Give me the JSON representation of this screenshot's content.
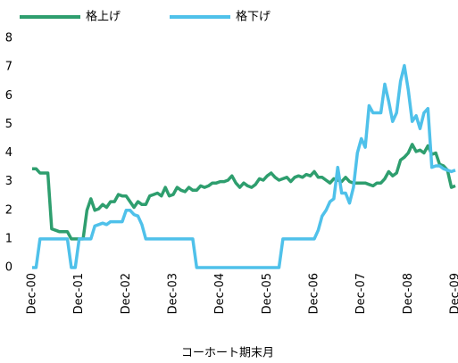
{
  "chart_data": {
    "type": "line",
    "xlabel": "コーホート期末月",
    "categories": [
      "Dec-00",
      null,
      null,
      null,
      null,
      null,
      null,
      null,
      null,
      null,
      null,
      null,
      "Dec-01",
      null,
      null,
      null,
      null,
      null,
      null,
      null,
      null,
      null,
      null,
      null,
      "Dec-02",
      null,
      null,
      null,
      null,
      null,
      null,
      null,
      null,
      null,
      null,
      null,
      "Dec-03",
      null,
      null,
      null,
      null,
      null,
      null,
      null,
      null,
      null,
      null,
      null,
      "Dec-04",
      null,
      null,
      null,
      null,
      null,
      null,
      null,
      null,
      null,
      null,
      null,
      "Dec-05",
      null,
      null,
      null,
      null,
      null,
      null,
      null,
      null,
      null,
      null,
      null,
      "Dec-06",
      null,
      null,
      null,
      null,
      null,
      null,
      null,
      null,
      null,
      null,
      null,
      "Dec-07",
      null,
      null,
      null,
      null,
      null,
      null,
      null,
      null,
      null,
      null,
      null,
      "Dec-08",
      null,
      null,
      null,
      null,
      null,
      null,
      null,
      null,
      null,
      null,
      null,
      "Dec-09"
    ],
    "series": [
      {
        "name": "格上げ",
        "color": "#2e9e6e",
        "values": [
          3.45,
          3.45,
          3.3,
          3.3,
          3.3,
          1.35,
          1.3,
          1.25,
          1.25,
          1.25,
          1.0,
          1.0,
          1.0,
          1.0,
          2.0,
          2.4,
          2.0,
          2.05,
          2.2,
          2.1,
          2.3,
          2.3,
          2.55,
          2.5,
          2.5,
          2.3,
          2.1,
          2.3,
          2.2,
          2.2,
          2.5,
          2.55,
          2.6,
          2.5,
          2.8,
          2.5,
          2.55,
          2.8,
          2.7,
          2.65,
          2.8,
          2.7,
          2.7,
          2.85,
          2.8,
          2.85,
          2.95,
          2.95,
          3.0,
          3.0,
          3.05,
          3.2,
          2.95,
          2.8,
          2.95,
          2.85,
          2.8,
          2.9,
          3.1,
          3.05,
          3.2,
          3.3,
          3.15,
          3.05,
          3.1,
          3.15,
          3.0,
          3.15,
          3.2,
          3.15,
          3.25,
          3.2,
          3.35,
          3.15,
          3.15,
          3.05,
          2.95,
          3.1,
          3.05,
          3.0,
          3.15,
          3.0,
          2.95,
          2.95,
          2.95,
          2.95,
          2.9,
          2.85,
          2.95,
          2.95,
          3.1,
          3.35,
          3.2,
          3.3,
          3.75,
          3.85,
          4.0,
          4.3,
          4.05,
          4.1,
          4.0,
          4.25,
          3.95,
          4.0,
          3.6,
          3.55,
          3.4,
          2.8,
          2.85
        ]
      },
      {
        "name": "格下げ",
        "color": "#4fc1ea",
        "values": [
          0,
          0,
          1,
          1,
          1,
          1,
          1,
          1,
          1,
          1,
          0,
          0,
          1,
          1,
          1,
          1,
          1.45,
          1.5,
          1.55,
          1.5,
          1.6,
          1.6,
          1.6,
          1.6,
          2,
          2,
          1.85,
          1.8,
          1.5,
          1,
          1,
          1,
          1,
          1,
          1,
          1,
          1,
          1,
          1,
          1,
          1,
          1,
          0,
          0,
          0,
          0,
          0,
          0,
          0,
          0,
          0,
          0,
          0,
          0,
          0,
          0,
          0,
          0,
          0,
          0,
          0,
          0,
          0,
          0,
          1,
          1,
          1,
          1,
          1,
          1,
          1,
          1,
          1,
          1.3,
          1.8,
          2,
          2.3,
          2.4,
          3.5,
          2.6,
          2.6,
          2.25,
          2.8,
          4,
          4.5,
          4.2,
          5.65,
          5.4,
          5.4,
          5.4,
          6.4,
          5.8,
          5.1,
          5.4,
          6.5,
          7.05,
          6.2,
          5.1,
          5.3,
          4.85,
          5.4,
          5.55,
          3.5,
          3.55,
          3.55,
          3.45,
          3.4,
          3.35,
          3.4
        ]
      }
    ],
    "ylim": [
      0,
      8
    ],
    "yticks": [
      0,
      1,
      2,
      3,
      4,
      5,
      6,
      7,
      8
    ],
    "legend": "top"
  }
}
